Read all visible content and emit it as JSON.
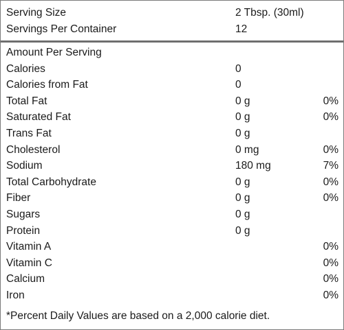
{
  "header": {
    "serving_size_label": "Serving Size",
    "serving_size_value": "2 Tbsp. (30ml)",
    "servings_label": "Servings Per Container",
    "servings_value": "12"
  },
  "amount_per_serving_label": "Amount Per Serving",
  "rows": [
    {
      "name": "Calories",
      "amount": "0",
      "dv": ""
    },
    {
      "name": "Calories from Fat",
      "amount": "0",
      "dv": ""
    },
    {
      "name": "Total Fat",
      "amount": "0 g",
      "dv": "0%"
    },
    {
      "name": "Saturated Fat",
      "amount": "0 g",
      "dv": "0%"
    },
    {
      "name": "Trans Fat",
      "amount": "0 g",
      "dv": ""
    },
    {
      "name": "Cholesterol",
      "amount": "0 mg",
      "dv": "0%"
    },
    {
      "name": "Sodium",
      "amount": "180 mg",
      "dv": "7%"
    },
    {
      "name": "Total Carbohydrate",
      "amount": "0 g",
      "dv": "0%"
    },
    {
      "name": "Fiber",
      "amount": "0 g",
      "dv": "0%"
    },
    {
      "name": "Sugars",
      "amount": "0 g",
      "dv": ""
    },
    {
      "name": "Protein",
      "amount": "0 g",
      "dv": ""
    },
    {
      "name": "Vitamin A",
      "amount": "",
      "dv": "0%"
    },
    {
      "name": "Vitamin C",
      "amount": "",
      "dv": "0%"
    },
    {
      "name": "Calcium",
      "amount": "",
      "dv": "0%"
    },
    {
      "name": "Iron",
      "amount": "",
      "dv": "0%"
    }
  ],
  "footnote": "*Percent Daily Values are based on a 2,000 calorie diet."
}
